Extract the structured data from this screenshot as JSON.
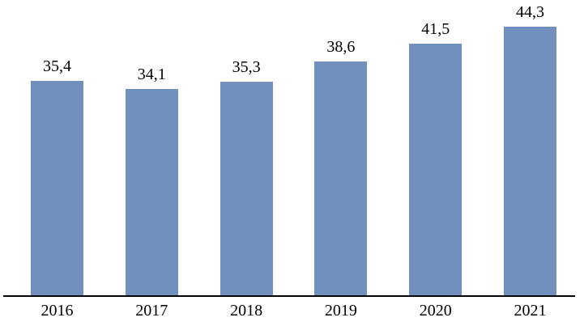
{
  "chart_data": {
    "type": "bar",
    "categories": [
      "2016",
      "2017",
      "2018",
      "2019",
      "2020",
      "2021"
    ],
    "values": [
      35.4,
      34.1,
      35.3,
      38.6,
      41.5,
      44.3
    ],
    "value_labels": [
      "35,4",
      "34,1",
      "35,3",
      "38,6",
      "41,5",
      "44,3"
    ],
    "title": "",
    "xlabel": "",
    "ylabel": "",
    "ylim": [
      0,
      48.9
    ],
    "grid": false,
    "legend": false,
    "decimal_separator": ",",
    "bar_color": "#7290BE",
    "axis_color": "#000000",
    "text_color": "#000000",
    "background_color": "#FFFFFF"
  }
}
